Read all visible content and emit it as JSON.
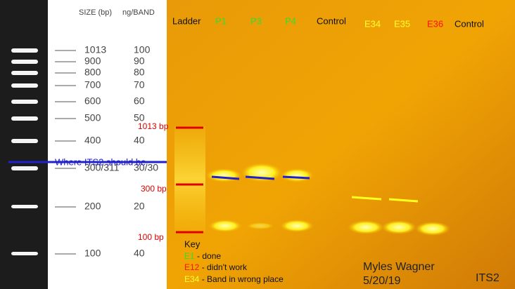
{
  "reference": {
    "headers": [
      "SIZE (bp)",
      "ng/BAND"
    ],
    "rows": [
      [
        "1013",
        "100"
      ],
      [
        "900",
        "90"
      ],
      [
        "800",
        "80"
      ],
      [
        "700",
        "70"
      ],
      [
        "600",
        "60"
      ],
      [
        "500",
        "50"
      ],
      [
        "400",
        "40"
      ],
      [
        "300/311",
        "30/30"
      ],
      [
        "200",
        "20"
      ],
      [
        "100",
        "40"
      ]
    ]
  },
  "gel": {
    "lanes": [
      "Ladder",
      "P1",
      "P3",
      "P4",
      "Control",
      "E34",
      "E35",
      "E36",
      "Control"
    ],
    "markers": [
      "1013 bp",
      "300 bp",
      "100 bp"
    ],
    "annotation": "Where ITS2 should be",
    "key": {
      "title": "Key",
      "items": [
        {
          "code": "E1",
          "text": " - done"
        },
        {
          "code": "E12",
          "text": " - didn't work"
        },
        {
          "code": "E34",
          "text": " - Band in wrong place"
        }
      ]
    },
    "author": "Myles Wagner",
    "date": "5/20/19",
    "label": "ITS2"
  }
}
